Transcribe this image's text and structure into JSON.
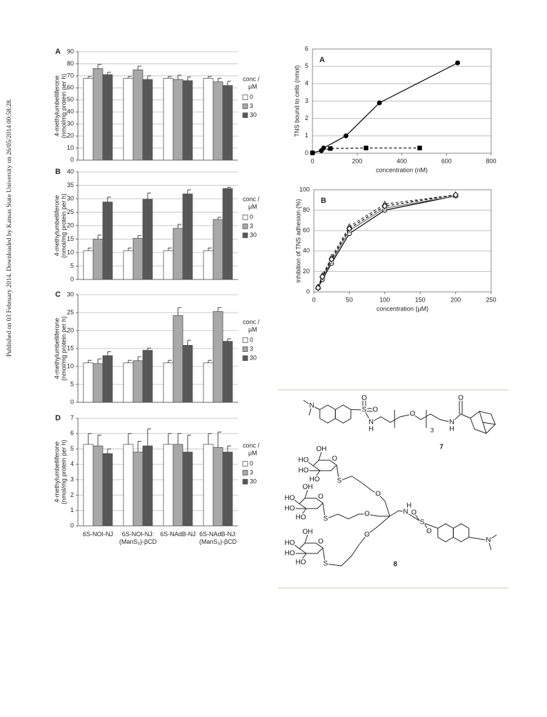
{
  "side_note": "Published on 03 February 2014. Downloaded by Kansas State University on 26/05/2014 00:58:28.",
  "chart_data": [
    {
      "type": "bar",
      "panel_label": "A",
      "ylabel": [
        "4-methylumbelliferone",
        "(nmol/mg protein per h)"
      ],
      "categories": [
        null,
        null,
        null,
        null
      ],
      "legend_title": [
        "conc /",
        "µM"
      ],
      "ylim": [
        0,
        90
      ],
      "yticks": [
        0,
        10,
        20,
        30,
        40,
        50,
        60,
        70,
        80,
        90
      ],
      "grid": true,
      "series": [
        {
          "name": "0",
          "color": "#ffffff",
          "values": [
            68,
            68,
            68,
            68
          ],
          "errors": [
            1.5,
            1.5,
            1.5,
            1.5
          ]
        },
        {
          "name": "3",
          "color": "#a8a8a8",
          "values": [
            76,
            75,
            67,
            65
          ],
          "errors": [
            3.5,
            3,
            3.5,
            3
          ]
        },
        {
          "name": "30",
          "color": "#585858",
          "values": [
            71,
            67,
            66,
            62
          ],
          "errors": [
            2,
            3,
            3,
            3.5
          ]
        }
      ]
    },
    {
      "type": "bar",
      "panel_label": "B",
      "ylabel": [
        "4-methylumbelliferone",
        "(nmol/mg protein per h)"
      ],
      "categories": [
        null,
        null,
        null,
        null
      ],
      "legend_title": [
        "conc /",
        "µM"
      ],
      "ylim": [
        0,
        40
      ],
      "yticks": [
        0,
        5,
        10,
        15,
        20,
        25,
        30,
        35,
        40
      ],
      "grid": true,
      "series": [
        {
          "name": "0",
          "color": "#ffffff",
          "values": [
            10.7,
            10.7,
            10.7,
            10.7
          ],
          "errors": [
            1,
            1,
            1,
            1
          ]
        },
        {
          "name": "3",
          "color": "#a8a8a8",
          "values": [
            15,
            15.3,
            19,
            22.3
          ],
          "errors": [
            1.5,
            1,
            1.5,
            0.8
          ]
        },
        {
          "name": "30",
          "color": "#585858",
          "values": [
            28.8,
            29.8,
            31.8,
            33.8
          ],
          "errors": [
            1.8,
            2.3,
            1.5,
            0.5
          ]
        }
      ]
    },
    {
      "type": "bar",
      "panel_label": "C",
      "ylabel": [
        "4-methylumbelliferone",
        "(nmol/mg protein per h)"
      ],
      "categories": [
        null,
        null,
        null,
        null
      ],
      "legend_title": [
        "conc /",
        "µM"
      ],
      "ylim": [
        0,
        30
      ],
      "yticks": [
        0,
        5,
        10,
        15,
        20,
        25,
        30
      ],
      "grid": true,
      "series": [
        {
          "name": "0",
          "color": "#ffffff",
          "values": [
            11,
            11,
            11,
            11
          ],
          "errors": [
            0.7,
            0.7,
            0.7,
            0.7
          ]
        },
        {
          "name": "3",
          "color": "#a8a8a8",
          "values": [
            10.8,
            11.6,
            24.2,
            25.3
          ],
          "errors": [
            1.3,
            1.1,
            2.2,
            1.1
          ]
        },
        {
          "name": "30",
          "color": "#585858",
          "values": [
            13,
            14.5,
            15.9,
            17
          ],
          "errors": [
            1.1,
            0.6,
            1.4,
            0.7
          ]
        }
      ]
    },
    {
      "type": "bar",
      "panel_label": "D",
      "ylabel": [
        "4-methylumbelliferone",
        "(nmol/mg protein per h)"
      ],
      "categories": [
        "6S-NOI-NJ",
        "6S-NOI-NJ:\n(ManS₃)-βCD",
        "6S-NAdB-NJ",
        "6S-NAdB-NJ:\n(ManS₃)-βCD"
      ],
      "legend_title": [
        "conc /",
        "µM"
      ],
      "ylim": [
        0,
        7
      ],
      "yticks": [
        0,
        1,
        2,
        3,
        4,
        5,
        6,
        7
      ],
      "grid": true,
      "series": [
        {
          "name": "0",
          "color": "#ffffff",
          "values": [
            5.3,
            5.3,
            5.3,
            5.3
          ],
          "errors": [
            0.7,
            0.7,
            0.7,
            0.7
          ]
        },
        {
          "name": "3",
          "color": "#a8a8a8",
          "values": [
            5.2,
            4.8,
            5.3,
            5.1
          ],
          "errors": [
            0.7,
            0.7,
            0.7,
            1.0
          ]
        },
        {
          "name": "30",
          "color": "#585858",
          "values": [
            4.7,
            5.2,
            4.8,
            4.8
          ],
          "errors": [
            0.3,
            1.1,
            1.1,
            0.4
          ]
        }
      ]
    },
    {
      "type": "line",
      "panel_label": "A",
      "ylabel": "TNS bound to cells (nmol)",
      "xlabel": "concentration (nM)",
      "xlim": [
        0,
        800
      ],
      "xticks": [
        0,
        200,
        400,
        600,
        800
      ],
      "ylim": [
        0,
        6
      ],
      "yticks": [
        0,
        1,
        2,
        3,
        4,
        5,
        6
      ],
      "grid": true,
      "series": [
        {
          "x": [
            0,
            40,
            50,
            150,
            300,
            650
          ],
          "values": [
            0.02,
            0.15,
            0.3,
            1.0,
            2.9,
            5.2
          ],
          "marker": "circle",
          "filled": true,
          "dash": "solid",
          "color": "#000000"
        },
        {
          "x": [
            0,
            80,
            240,
            480
          ],
          "values": [
            0.02,
            0.27,
            0.3,
            0.3
          ],
          "marker": "square",
          "filled": true,
          "dash": "dashed",
          "color": "#000000"
        }
      ]
    },
    {
      "type": "line",
      "panel_label": "B",
      "ylabel": "inhibition of TNS adhesion (%)",
      "xlabel": "concentration (µM)",
      "xlim": [
        0,
        250
      ],
      "xticks": [
        0,
        50,
        100,
        150,
        200,
        250
      ],
      "ylim": [
        0,
        100
      ],
      "yticks": [
        0,
        20,
        40,
        60,
        80,
        100
      ],
      "grid": true,
      "series": [
        {
          "x": [
            6,
            12,
            25,
            50,
            100,
            200
          ],
          "values": [
            4,
            12,
            28,
            57,
            80,
            94
          ],
          "marker": "circle",
          "filled": false,
          "dash": "solid",
          "color": "#000000"
        },
        {
          "x": [
            6,
            12,
            25,
            50,
            100,
            200
          ],
          "values": [
            4,
            14,
            30,
            60,
            82,
            94
          ],
          "marker": "square",
          "filled": false,
          "dash": "solid",
          "color": "#666666"
        },
        {
          "x": [
            6,
            12,
            25,
            50,
            100,
            200
          ],
          "values": [
            5,
            16,
            34,
            64,
            86,
            95
          ],
          "marker": "triangle",
          "filled": false,
          "dash": "dashed",
          "color": "#333333"
        },
        {
          "x": [
            6,
            12,
            25,
            50,
            100,
            200
          ],
          "values": [
            4,
            15,
            32,
            62,
            84,
            95
          ],
          "marker": "diamond",
          "filled": false,
          "dash": "dashed",
          "color": "#000000"
        }
      ]
    }
  ],
  "structures": {
    "compound_7": {
      "atoms": [
        "N",
        "S",
        "O",
        "O",
        "N",
        "H",
        "O",
        "N",
        "H",
        "O"
      ],
      "repeat": "3",
      "label": "7"
    },
    "compound_8": {
      "atoms": [
        "HO",
        "HO",
        "HO",
        "O",
        "OH",
        "HO",
        "HO",
        "HO",
        "O",
        "OH",
        "HO",
        "HO",
        "HO",
        "O",
        "OH",
        "S",
        "S",
        "S",
        "O",
        "O",
        "O",
        "N",
        "H",
        "S",
        "O",
        "O",
        "N"
      ],
      "label": "8"
    }
  }
}
